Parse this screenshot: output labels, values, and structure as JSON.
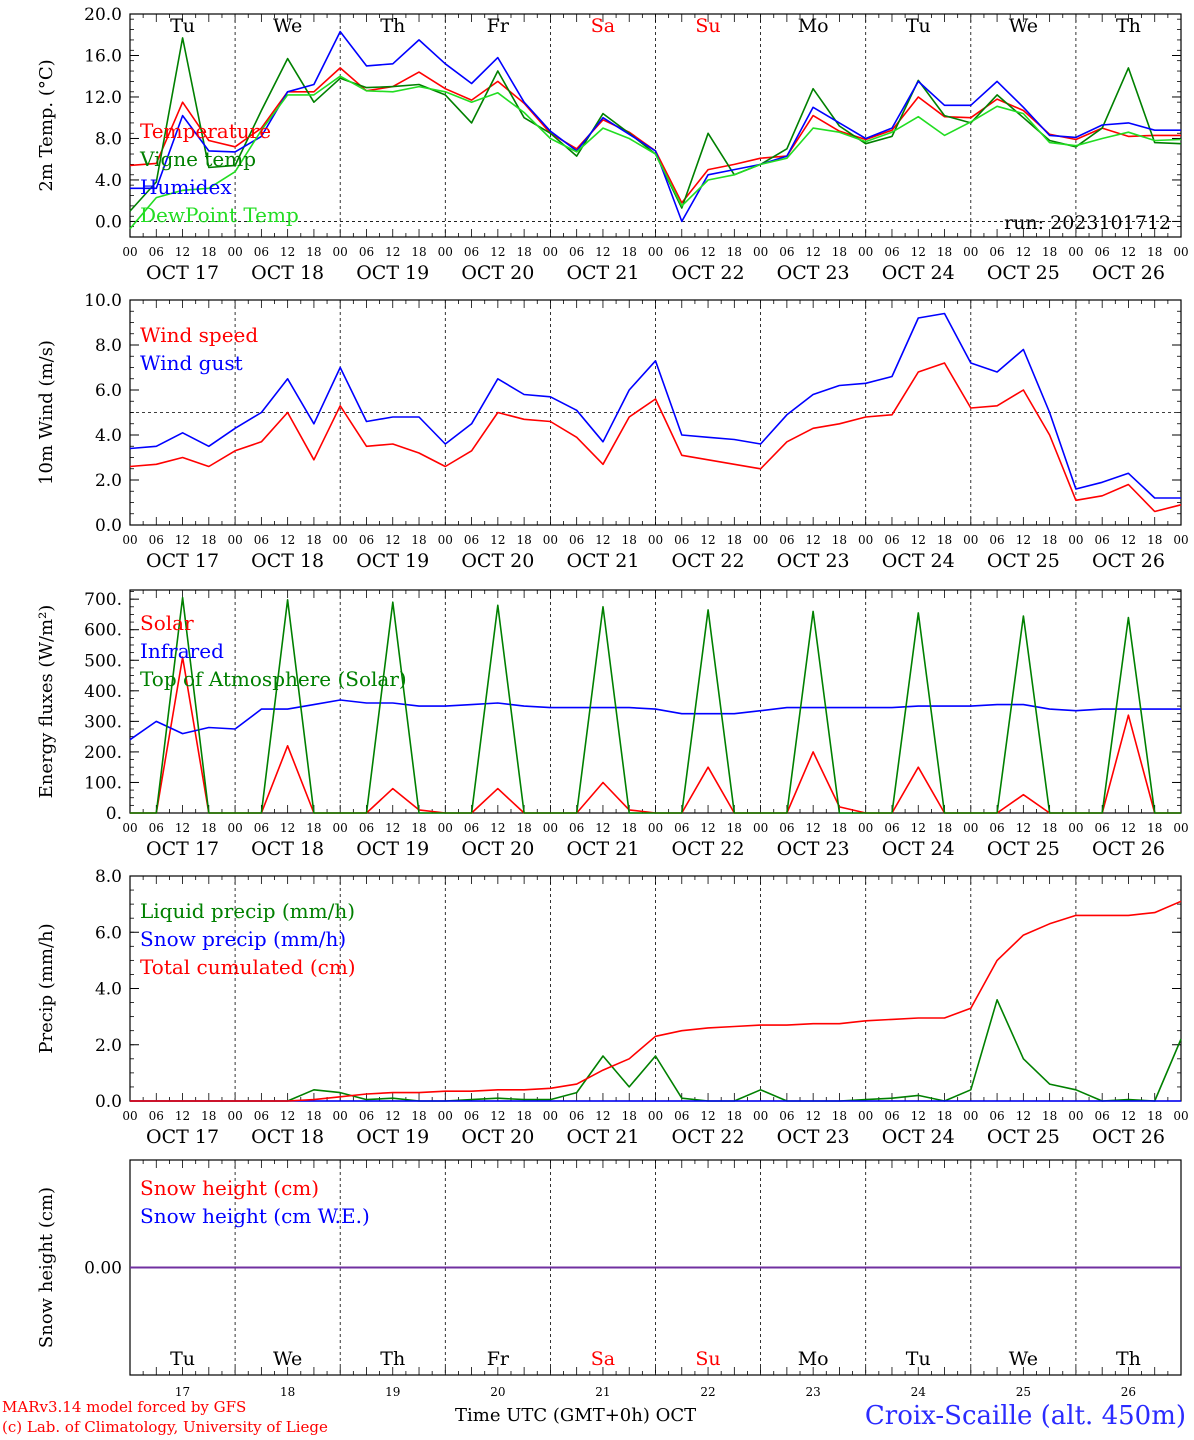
{
  "footer": {
    "credit_line1": "MARv3.14 model forced by GFS",
    "credit_line2": "(c) Lab. of Climatology, University of Liege",
    "time_axis_label": "Time UTC (GMT+0h) OCT",
    "station": "Croix-Scaille (alt. 450m)"
  },
  "colors": {
    "red": "#ff0000",
    "blue": "#0000ff",
    "green": "#008000",
    "light_green": "#22dd22",
    "weekend": "#ff0000",
    "snow_line": "#7030a0"
  },
  "chart_data": [
    {
      "type": "line",
      "ylabel": "2m Temp. (°C)",
      "ylim": [
        -1.5,
        20.0
      ],
      "yticks": [
        "20.0",
        "16.0",
        "12.0",
        "8.0",
        "4.0",
        "0.0"
      ],
      "reference_line": 0.0,
      "run_label": "run: 2023101712",
      "weekdays": [
        {
          "label": "Tu",
          "weekend": false
        },
        {
          "label": "We",
          "weekend": false
        },
        {
          "label": "Th",
          "weekend": false
        },
        {
          "label": "Fr",
          "weekend": false
        },
        {
          "label": "Sa",
          "weekend": true
        },
        {
          "label": "Su",
          "weekend": true
        },
        {
          "label": "Mo",
          "weekend": false
        },
        {
          "label": "Tu",
          "weekend": false
        },
        {
          "label": "We",
          "weekend": false
        },
        {
          "label": "Th",
          "weekend": false
        }
      ],
      "day_labels": [
        "OCT 17",
        "OCT 18",
        "OCT 19",
        "OCT 20",
        "OCT 21",
        "OCT 22",
        "OCT 23",
        "OCT 24",
        "OCT 25",
        "OCT 26"
      ],
      "x_hours": [
        0,
        6,
        12,
        18,
        24,
        30,
        36,
        42,
        48,
        54,
        60,
        66,
        72,
        78,
        84,
        90,
        96,
        102,
        108,
        114,
        120,
        126,
        132,
        138,
        144,
        150,
        156,
        162,
        168,
        174,
        180,
        186,
        192,
        198,
        204,
        210,
        216,
        222,
        228,
        234,
        240
      ],
      "series": [
        {
          "name": "Temperature",
          "color": "#ff0000",
          "values": [
            5.4,
            5.6,
            11.5,
            7.8,
            7.2,
            9.0,
            12.5,
            12.5,
            14.8,
            12.6,
            13.0,
            14.4,
            12.8,
            11.7,
            13.5,
            11.4,
            8.5,
            7.0,
            9.8,
            8.6,
            6.8,
            1.8,
            5.0,
            5.5,
            6.1,
            6.3,
            10.2,
            8.7,
            7.9,
            8.8,
            12.0,
            10.1,
            10.0,
            11.8,
            10.7,
            8.4,
            7.9,
            9.0,
            8.2,
            8.3,
            8.3
          ]
        },
        {
          "name": "Vigne temp",
          "color": "#008000",
          "values": [
            1.0,
            3.8,
            17.7,
            5.2,
            5.4,
            10.7,
            15.7,
            11.5,
            13.8,
            12.9,
            13.0,
            13.2,
            12.2,
            9.5,
            14.5,
            10.0,
            8.5,
            6.3,
            10.4,
            8.5,
            6.5,
            1.3,
            8.5,
            4.5,
            5.5,
            7.0,
            12.8,
            9.2,
            7.5,
            8.2,
            13.6,
            10.2,
            9.5,
            12.2,
            10.0,
            7.8,
            7.2,
            9.0,
            14.8,
            7.6,
            7.5
          ]
        },
        {
          "name": "Humidex",
          "color": "#0000ff",
          "values": [
            3.2,
            3.2,
            10.2,
            6.8,
            6.7,
            8.2,
            12.5,
            13.2,
            18.3,
            15.0,
            15.2,
            17.5,
            15.2,
            13.3,
            15.8,
            11.5,
            8.7,
            6.8,
            10.0,
            8.4,
            6.8,
            0.0,
            4.5,
            5.0,
            5.5,
            6.3,
            11.0,
            9.5,
            8.0,
            9.0,
            13.5,
            11.2,
            11.2,
            13.5,
            11.0,
            8.3,
            8.1,
            9.3,
            9.5,
            8.8,
            8.8
          ]
        },
        {
          "name": "DewPoint Temp",
          "color": "#22dd22",
          "values": [
            -0.7,
            2.3,
            3.0,
            3.2,
            4.8,
            8.8,
            12.2,
            12.2,
            14.0,
            12.6,
            12.5,
            13.0,
            12.5,
            11.5,
            12.4,
            10.5,
            8.0,
            6.7,
            9.0,
            8.0,
            6.5,
            1.5,
            4.0,
            4.5,
            5.5,
            6.1,
            9.0,
            8.6,
            7.7,
            8.6,
            10.1,
            8.3,
            9.6,
            11.1,
            10.4,
            7.6,
            7.3,
            8.0,
            8.6,
            7.8,
            7.9
          ]
        }
      ]
    },
    {
      "type": "line",
      "ylabel": "10m Wind (m/s)",
      "ylim": [
        0.0,
        10.0
      ],
      "yticks": [
        "10.0",
        "8.0",
        "6.0",
        "4.0",
        "2.0",
        "0.0"
      ],
      "reference_line": 5.0,
      "day_labels": [
        "OCT 17",
        "OCT 18",
        "OCT 19",
        "OCT 20",
        "OCT 21",
        "OCT 22",
        "OCT 23",
        "OCT 24",
        "OCT 25",
        "OCT 26"
      ],
      "x_hours": [
        0,
        6,
        12,
        18,
        24,
        30,
        36,
        42,
        48,
        54,
        60,
        66,
        72,
        78,
        84,
        90,
        96,
        102,
        108,
        114,
        120,
        126,
        132,
        138,
        144,
        150,
        156,
        162,
        168,
        174,
        180,
        186,
        192,
        198,
        204,
        210,
        216,
        222,
        228,
        234,
        240
      ],
      "series": [
        {
          "name": "Wind speed",
          "color": "#ff0000",
          "values": [
            2.6,
            2.7,
            3.0,
            2.6,
            3.3,
            3.7,
            5.0,
            2.9,
            5.3,
            3.5,
            3.6,
            3.2,
            2.6,
            3.3,
            5.0,
            4.7,
            4.6,
            3.9,
            2.7,
            4.8,
            5.6,
            3.1,
            2.9,
            2.7,
            2.5,
            3.7,
            4.3,
            4.5,
            4.8,
            4.9,
            6.8,
            7.2,
            5.2,
            5.3,
            6.0,
            4.0,
            1.1,
            1.3,
            1.8,
            0.6,
            0.9
          ]
        },
        {
          "name": "Wind gust",
          "color": "#0000ff",
          "values": [
            3.4,
            3.5,
            4.1,
            3.5,
            4.3,
            5.0,
            6.5,
            4.5,
            7.0,
            4.6,
            4.8,
            4.8,
            3.6,
            4.5,
            6.5,
            5.8,
            5.7,
            5.1,
            3.7,
            6.0,
            7.3,
            4.0,
            3.9,
            3.8,
            3.6,
            4.9,
            5.8,
            6.2,
            6.3,
            6.6,
            9.2,
            9.4,
            7.2,
            6.8,
            7.8,
            5.0,
            1.6,
            1.9,
            2.3,
            1.2,
            1.2
          ]
        }
      ]
    },
    {
      "type": "line",
      "ylabel": "Energy fluxes (W/m²)",
      "ylim": [
        0,
        730
      ],
      "yticks": [
        "700.",
        "600.",
        "500.",
        "400.",
        "300.",
        "200.",
        "100.",
        "0."
      ],
      "day_labels": [
        "OCT 17",
        "OCT 18",
        "OCT 19",
        "OCT 20",
        "OCT 21",
        "OCT 22",
        "OCT 23",
        "OCT 24",
        "OCT 25",
        "OCT 26"
      ],
      "x_hours": [
        0,
        6,
        12,
        18,
        24,
        30,
        36,
        42,
        48,
        54,
        60,
        66,
        72,
        78,
        84,
        90,
        96,
        102,
        108,
        114,
        120,
        126,
        132,
        138,
        144,
        150,
        156,
        162,
        168,
        174,
        180,
        186,
        192,
        198,
        204,
        210,
        216,
        222,
        228,
        234,
        240
      ],
      "series": [
        {
          "name": "Solar",
          "color": "#ff0000",
          "values": [
            0,
            0,
            510,
            0,
            0,
            0,
            220,
            0,
            0,
            0,
            80,
            10,
            0,
            0,
            80,
            0,
            0,
            0,
            100,
            10,
            0,
            0,
            150,
            0,
            0,
            0,
            200,
            20,
            0,
            0,
            150,
            0,
            0,
            0,
            60,
            0,
            0,
            0,
            320,
            0,
            0
          ]
        },
        {
          "name": "Infrared",
          "color": "#0000ff",
          "values": [
            240,
            300,
            260,
            280,
            275,
            340,
            340,
            355,
            370,
            360,
            360,
            350,
            350,
            355,
            360,
            350,
            345,
            345,
            345,
            345,
            340,
            325,
            325,
            325,
            335,
            345,
            345,
            345,
            345,
            345,
            350,
            350,
            350,
            355,
            355,
            340,
            335,
            340,
            340,
            340,
            340
          ]
        },
        {
          "name": "Top of Atmosphere (Solar)",
          "color": "#008000",
          "values": [
            0,
            0,
            705,
            0,
            0,
            0,
            698,
            0,
            0,
            0,
            690,
            0,
            0,
            0,
            680,
            0,
            0,
            0,
            675,
            0,
            0,
            0,
            665,
            0,
            0,
            0,
            660,
            0,
            0,
            0,
            655,
            0,
            0,
            0,
            645,
            0,
            0,
            0,
            640,
            0,
            0
          ]
        }
      ]
    },
    {
      "type": "line",
      "ylabel": "Precip (mm/h)",
      "ylim": [
        0.0,
        8.0
      ],
      "yticks": [
        "8.0",
        "6.0",
        "4.0",
        "2.0",
        "0.0"
      ],
      "day_labels": [
        "OCT 17",
        "OCT 18",
        "OCT 19",
        "OCT 20",
        "OCT 21",
        "OCT 22",
        "OCT 23",
        "OCT 24",
        "OCT 25",
        "OCT 26"
      ],
      "x_hours": [
        0,
        6,
        12,
        18,
        24,
        30,
        36,
        42,
        48,
        54,
        60,
        66,
        72,
        78,
        84,
        90,
        96,
        102,
        108,
        114,
        120,
        126,
        132,
        138,
        144,
        150,
        156,
        162,
        168,
        174,
        180,
        186,
        192,
        198,
        204,
        210,
        216,
        222,
        228,
        234,
        240
      ],
      "series": [
        {
          "name": "Liquid precip (mm/h)",
          "color": "#008000",
          "values": [
            0,
            0,
            0,
            0,
            0,
            0,
            0,
            0.4,
            0.3,
            0.05,
            0.1,
            0,
            0,
            0.05,
            0.1,
            0.05,
            0.05,
            0.3,
            1.6,
            0.5,
            1.6,
            0.1,
            0,
            0,
            0.4,
            0,
            0,
            0,
            0.05,
            0.1,
            0.2,
            0,
            0.4,
            3.6,
            1.5,
            0.6,
            0.4,
            0,
            0.05,
            0,
            2.2
          ]
        },
        {
          "name": "Snow precip (mm/h)",
          "color": "#0000ff",
          "values": [
            0,
            0,
            0,
            0,
            0,
            0,
            0,
            0,
            0,
            0,
            0,
            0,
            0,
            0,
            0,
            0,
            0,
            0,
            0,
            0,
            0,
            0,
            0,
            0,
            0,
            0,
            0,
            0,
            0,
            0,
            0,
            0,
            0,
            0,
            0,
            0,
            0,
            0,
            0,
            0,
            0
          ]
        },
        {
          "name": "Total cumulated (cm)",
          "color": "#ff0000",
          "values": [
            0,
            0,
            0,
            0,
            0,
            0,
            0,
            0.05,
            0.15,
            0.25,
            0.3,
            0.3,
            0.35,
            0.35,
            0.4,
            0.4,
            0.45,
            0.6,
            1.1,
            1.5,
            2.3,
            2.5,
            2.6,
            2.65,
            2.7,
            2.7,
            2.75,
            2.75,
            2.85,
            2.9,
            2.95,
            2.95,
            3.3,
            5.0,
            5.9,
            6.3,
            6.6,
            6.6,
            6.6,
            6.7,
            7.1
          ]
        }
      ]
    },
    {
      "type": "line",
      "ylabel": "Snow height (cm)",
      "ylim": [
        -1.0,
        1.0
      ],
      "yticks": [
        "0.00"
      ],
      "weekdays": [
        {
          "label": "Tu",
          "weekend": false
        },
        {
          "label": "We",
          "weekend": false
        },
        {
          "label": "Th",
          "weekend": false
        },
        {
          "label": "Fr",
          "weekend": false
        },
        {
          "label": "Sa",
          "weekend": true
        },
        {
          "label": "Su",
          "weekend": true
        },
        {
          "label": "Mo",
          "weekend": false
        },
        {
          "label": "Tu",
          "weekend": false
        },
        {
          "label": "We",
          "weekend": false
        },
        {
          "label": "Th",
          "weekend": false
        }
      ],
      "day_numbers": [
        "17",
        "18",
        "19",
        "20",
        "21",
        "22",
        "23",
        "24",
        "25",
        "26"
      ],
      "x_hours": [
        0,
        240
      ],
      "series": [
        {
          "name": "Snow height (cm)",
          "color": "#ff0000",
          "values": [
            0,
            0
          ]
        },
        {
          "name": "Snow height (cm W.E.)",
          "color": "#0000ff",
          "values": [
            0,
            0
          ]
        }
      ]
    }
  ]
}
